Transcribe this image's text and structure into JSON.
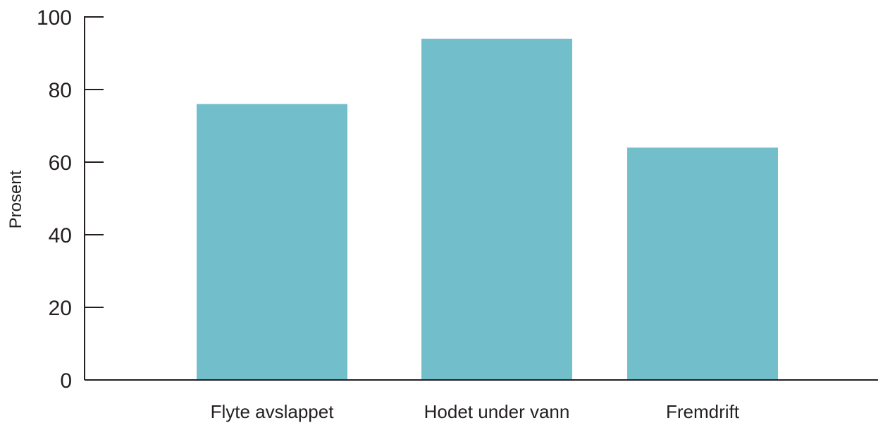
{
  "chart_data": {
    "type": "bar",
    "title": "",
    "xlabel": "",
    "ylabel": "Prosent",
    "ylim": [
      0,
      100
    ],
    "yticks": [
      0,
      20,
      40,
      60,
      80,
      100
    ],
    "categories": [
      "Flyte avslappet",
      "Hodet under vann",
      "Fremdrift"
    ],
    "values": [
      76,
      94,
      64
    ],
    "grid": false,
    "legend": "none",
    "colors": {
      "bar": "#72bfcb",
      "axis": "#231f20",
      "text": "#231f20"
    }
  }
}
